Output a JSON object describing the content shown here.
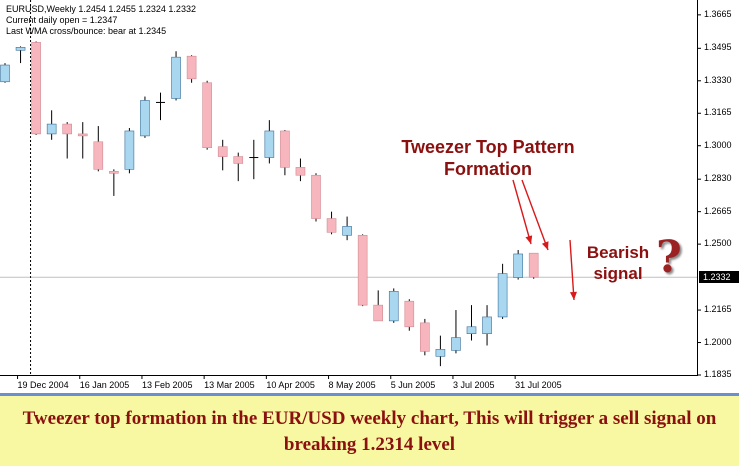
{
  "header": {
    "line1": "EURUSD,Weekly  1.2454 1.2455 1.2324 1.2332",
    "line2": "Current daily open = 1.2347",
    "line3": "Last WMA cross/bounce: bear at 1.2345"
  },
  "current_price_label": "1.2332",
  "annotations": {
    "tweezer_line1": "Tweezer Top Pattern",
    "tweezer_line2": "Formation",
    "bearish_line1": "Bearish",
    "bearish_line2": "signal",
    "qmark": "?"
  },
  "caption": "Tweezer top formation in the EUR/USD weekly chart, This will trigger a sell signal on breaking 1.2314 level",
  "colors": {
    "bull": "#a9d7f0",
    "bear": "#f7b6bd",
    "annotation": "#8b1010",
    "caption_bg": "#f8f7a2"
  },
  "chart_data": {
    "type": "candlestick",
    "symbol": "EURUSD",
    "timeframe": "Weekly",
    "ylim": [
      1.1835,
      1.371
    ],
    "y_ticks": [
      1.3665,
      1.3495,
      1.333,
      1.3165,
      1.3,
      1.283,
      1.2665,
      1.25,
      1.2332,
      1.2165,
      1.2,
      1.1835
    ],
    "y_tick_labels": [
      "1.3665",
      "1.3495",
      "1.3330",
      "1.3165",
      "1.3000",
      "1.2830",
      "1.2665",
      "1.2500",
      "1.2332",
      "1.2165",
      "1.2000",
      "1.1835"
    ],
    "x_tick_labels": [
      {
        "label": "19 Dec 2004",
        "index": 1
      },
      {
        "label": "16 Jan 2005",
        "index": 5
      },
      {
        "label": "13 Feb 2005",
        "index": 9
      },
      {
        "label": "13 Mar 2005",
        "index": 13
      },
      {
        "label": "10 Apr 2005",
        "index": 17
      },
      {
        "label": "8 May 2005",
        "index": 21
      },
      {
        "label": "5 Jun 2005",
        "index": 25
      },
      {
        "label": "3 Jul 2005",
        "index": 29
      },
      {
        "label": "31 Jul 2005",
        "index": 33
      }
    ],
    "current_price": 1.2332,
    "marker_index": 1,
    "candles": [
      {
        "o": 1.3325,
        "h": 1.342,
        "l": 1.332,
        "c": 1.341
      },
      {
        "o": 1.3485,
        "h": 1.3505,
        "l": 1.342,
        "c": 1.35
      },
      {
        "o": 1.3525,
        "h": 1.353,
        "l": 1.3055,
        "c": 1.306
      },
      {
        "o": 1.306,
        "h": 1.318,
        "l": 1.303,
        "c": 1.311
      },
      {
        "o": 1.311,
        "h": 1.312,
        "l": 1.2935,
        "c": 1.306
      },
      {
        "o": 1.306,
        "h": 1.312,
        "l": 1.2935,
        "c": 1.305
      },
      {
        "o": 1.302,
        "h": 1.31,
        "l": 1.287,
        "c": 1.288
      },
      {
        "o": 1.287,
        "h": 1.288,
        "l": 1.2745,
        "c": 1.286
      },
      {
        "o": 1.288,
        "h": 1.309,
        "l": 1.286,
        "c": 1.3075
      },
      {
        "o": 1.305,
        "h": 1.325,
        "l": 1.304,
        "c": 1.323
      },
      {
        "o": 1.3215,
        "h": 1.327,
        "l": 1.313,
        "c": 1.322
      },
      {
        "o": 1.324,
        "h": 1.348,
        "l": 1.323,
        "c": 1.345
      },
      {
        "o": 1.3455,
        "h": 1.346,
        "l": 1.332,
        "c": 1.334
      },
      {
        "o": 1.332,
        "h": 1.333,
        "l": 1.298,
        "c": 1.299
      },
      {
        "o": 1.2995,
        "h": 1.303,
        "l": 1.2875,
        "c": 1.2945
      },
      {
        "o": 1.2945,
        "h": 1.2965,
        "l": 1.282,
        "c": 1.291
      },
      {
        "o": 1.2935,
        "h": 1.303,
        "l": 1.283,
        "c": 1.294
      },
      {
        "o": 1.294,
        "h": 1.313,
        "l": 1.291,
        "c": 1.3075
      },
      {
        "o": 1.3075,
        "h": 1.308,
        "l": 1.285,
        "c": 1.289
      },
      {
        "o": 1.289,
        "h": 1.2935,
        "l": 1.282,
        "c": 1.285
      },
      {
        "o": 1.285,
        "h": 1.286,
        "l": 1.2615,
        "c": 1.263
      },
      {
        "o": 1.263,
        "h": 1.2665,
        "l": 1.255,
        "c": 1.256
      },
      {
        "o": 1.2545,
        "h": 1.264,
        "l": 1.252,
        "c": 1.259
      },
      {
        "o": 1.2545,
        "h": 1.255,
        "l": 1.2185,
        "c": 1.219
      },
      {
        "o": 1.219,
        "h": 1.2265,
        "l": 1.211,
        "c": 1.211
      },
      {
        "o": 1.211,
        "h": 1.2275,
        "l": 1.21,
        "c": 1.226
      },
      {
        "o": 1.221,
        "h": 1.222,
        "l": 1.206,
        "c": 1.208
      },
      {
        "o": 1.21,
        "h": 1.212,
        "l": 1.1935,
        "c": 1.1955
      },
      {
        "o": 1.193,
        "h": 1.2035,
        "l": 1.188,
        "c": 1.1965
      },
      {
        "o": 1.196,
        "h": 1.2165,
        "l": 1.1945,
        "c": 1.2025
      },
      {
        "o": 1.2045,
        "h": 1.219,
        "l": 1.201,
        "c": 1.208
      },
      {
        "o": 1.2045,
        "h": 1.219,
        "l": 1.1985,
        "c": 1.213
      },
      {
        "o": 1.213,
        "h": 1.24,
        "l": 1.212,
        "c": 1.235
      },
      {
        "o": 1.233,
        "h": 1.247,
        "l": 1.232,
        "c": 1.245
      },
      {
        "o": 1.2454,
        "h": 1.2455,
        "l": 1.2324,
        "c": 1.2332
      }
    ]
  }
}
